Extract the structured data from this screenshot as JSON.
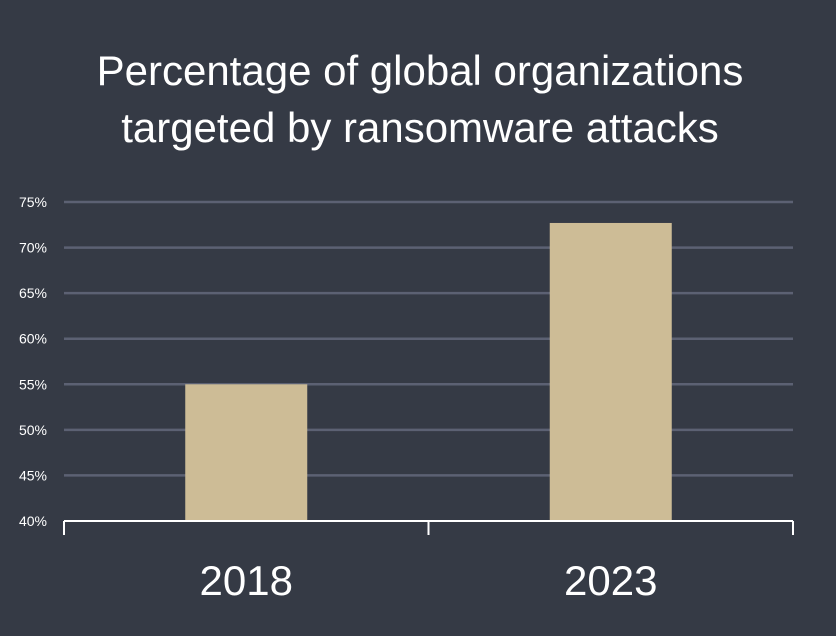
{
  "chart_data": {
    "type": "bar",
    "title_lines": [
      "Percentage of global organizations",
      "targeted by ransomware attacks"
    ],
    "categories": [
      "2018",
      "2023"
    ],
    "values": [
      55,
      72.7
    ],
    "unit": "%",
    "ylim": [
      40,
      75
    ],
    "yticks": [
      40,
      45,
      50,
      55,
      60,
      65,
      70,
      75
    ],
    "ytick_labels": [
      "40%",
      "45%",
      "50%",
      "55%",
      "60%",
      "65%",
      "70%",
      "75%"
    ],
    "grid": true,
    "legend": "none",
    "colors": {
      "background": "#353a45",
      "bar": "#cdbc96",
      "grid": "#5c6173",
      "text": "#ffffff"
    }
  }
}
